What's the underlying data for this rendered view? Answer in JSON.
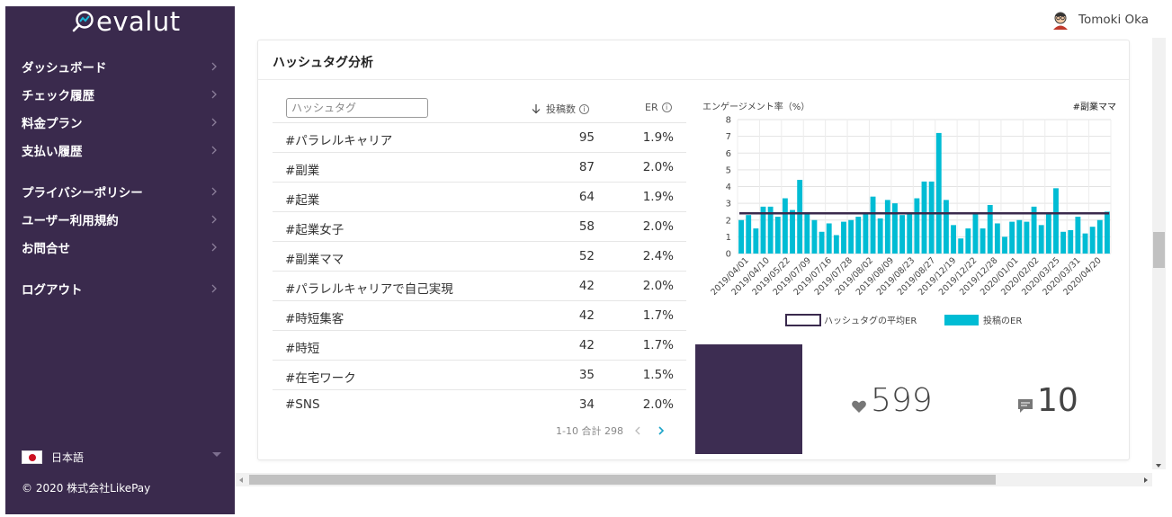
{
  "app": {
    "logo_text": "evalut"
  },
  "sidebar": {
    "items": [
      {
        "label": "ダッシュボード"
      },
      {
        "label": "チェック履歴"
      },
      {
        "label": "料金プラン"
      },
      {
        "label": "支払い履歴"
      },
      {
        "label": "プライバシーポリシー"
      },
      {
        "label": "ユーザー利用規約"
      },
      {
        "label": "お問合せ"
      },
      {
        "label": "ログアウト"
      }
    ],
    "language": "日本語",
    "copyright": "© 2020 株式会社LikePay"
  },
  "header": {
    "user_name": "Tomoki Oka"
  },
  "card": {
    "title": "ハッシュタグ分析",
    "search_placeholder": "ハッシュタグ",
    "col_posts": "投稿数",
    "col_er": "ER",
    "rows": [
      {
        "tag": "#パラレルキャリア",
        "count": "95",
        "er": "1.9%"
      },
      {
        "tag": "#副業",
        "count": "87",
        "er": "2.0%"
      },
      {
        "tag": "#起業",
        "count": "64",
        "er": "1.9%"
      },
      {
        "tag": "#起業女子",
        "count": "58",
        "er": "2.0%"
      },
      {
        "tag": "#副業ママ",
        "count": "52",
        "er": "2.4%"
      },
      {
        "tag": "#パラレルキャリアで自己実現",
        "count": "42",
        "er": "2.0%"
      },
      {
        "tag": "#時短集客",
        "count": "42",
        "er": "1.7%"
      },
      {
        "tag": "#時短",
        "count": "42",
        "er": "1.7%"
      },
      {
        "tag": "#在宅ワーク",
        "count": "35",
        "er": "1.5%"
      },
      {
        "tag": "#SNS",
        "count": "34",
        "er": "2.0%"
      }
    ],
    "pager_text": "1-10 合計 298"
  },
  "chart_data": {
    "type": "bar",
    "title": "#副業ママ",
    "ylabel": "エンゲージメント率（%）",
    "ylim": [
      0,
      8
    ],
    "yticks": [
      0,
      1,
      2,
      3,
      4,
      5,
      6,
      7,
      8
    ],
    "grid": true,
    "legend_position": "bottom",
    "x_tick_labels": [
      "2019/04/01",
      "2019/04/10",
      "2019/05/22",
      "2019/07/09",
      "2019/07/16",
      "2019/07/28",
      "2019/08/02",
      "2019/08/09",
      "2019/08/23",
      "2019/08/27",
      "2019/12/19",
      "2019/12/22",
      "2019/12/28",
      "2020/01/01",
      "2020/02/02",
      "2020/03/25",
      "2020/03/31",
      "2020/04/20"
    ],
    "series": [
      {
        "name": "投稿のER",
        "color": "#00bcd4",
        "values": [
          2.0,
          2.3,
          1.5,
          2.8,
          2.8,
          2.2,
          3.3,
          2.6,
          4.4,
          2.4,
          2.0,
          1.3,
          1.8,
          1.1,
          1.9,
          2.0,
          2.2,
          2.4,
          3.4,
          2.1,
          3.2,
          3.0,
          2.3,
          2.4,
          3.3,
          4.3,
          4.3,
          7.2,
          3.2,
          1.7,
          0.9,
          1.5,
          2.4,
          1.5,
          2.9,
          1.8,
          1.0,
          1.9,
          2.0,
          1.9,
          2.8,
          1.7,
          2.4,
          3.9,
          1.3,
          1.4,
          2.2,
          1.2,
          1.6,
          2.0,
          2.5
        ]
      },
      {
        "name": "ハッシュタグの平均ER",
        "color": "#3a2a4d",
        "value": 2.4
      }
    ]
  },
  "stats": {
    "likes": "599",
    "comments": "10"
  }
}
